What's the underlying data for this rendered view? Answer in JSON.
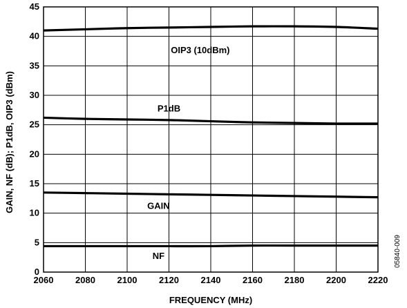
{
  "chart_data": {
    "type": "line",
    "xlabel": "FREQUENCY (MHz)",
    "ylabel": "GAIN, NF (dB); P1dB, OIP3 (dBm)",
    "xlim": [
      2060,
      2220
    ],
    "ylim": [
      0,
      45
    ],
    "x_ticks": [
      2060,
      2080,
      2100,
      2120,
      2140,
      2160,
      2180,
      2200,
      2220
    ],
    "y_ticks": [
      0,
      5,
      10,
      15,
      20,
      25,
      30,
      35,
      40,
      45
    ],
    "grid": true,
    "figure_id": "05840-009",
    "series": [
      {
        "name": "OIP3 (10dBm)",
        "x": [
          2060,
          2080,
          2100,
          2120,
          2140,
          2160,
          2180,
          2200,
          2220
        ],
        "values": [
          41.0,
          41.2,
          41.4,
          41.5,
          41.6,
          41.7,
          41.7,
          41.6,
          41.3
        ]
      },
      {
        "name": "P1dB",
        "x": [
          2060,
          2080,
          2100,
          2120,
          2140,
          2160,
          2180,
          2200,
          2220
        ],
        "values": [
          26.2,
          26.0,
          25.9,
          25.8,
          25.6,
          25.4,
          25.3,
          25.2,
          25.2
        ]
      },
      {
        "name": "GAIN",
        "x": [
          2060,
          2080,
          2100,
          2120,
          2140,
          2160,
          2180,
          2200,
          2220
        ],
        "values": [
          13.5,
          13.4,
          13.3,
          13.2,
          13.1,
          13.0,
          12.9,
          12.8,
          12.7
        ]
      },
      {
        "name": "NF",
        "x": [
          2060,
          2080,
          2100,
          2120,
          2140,
          2160,
          2180,
          2200,
          2220
        ],
        "values": [
          4.4,
          4.4,
          4.4,
          4.4,
          4.4,
          4.5,
          4.5,
          4.5,
          4.5
        ]
      }
    ]
  }
}
